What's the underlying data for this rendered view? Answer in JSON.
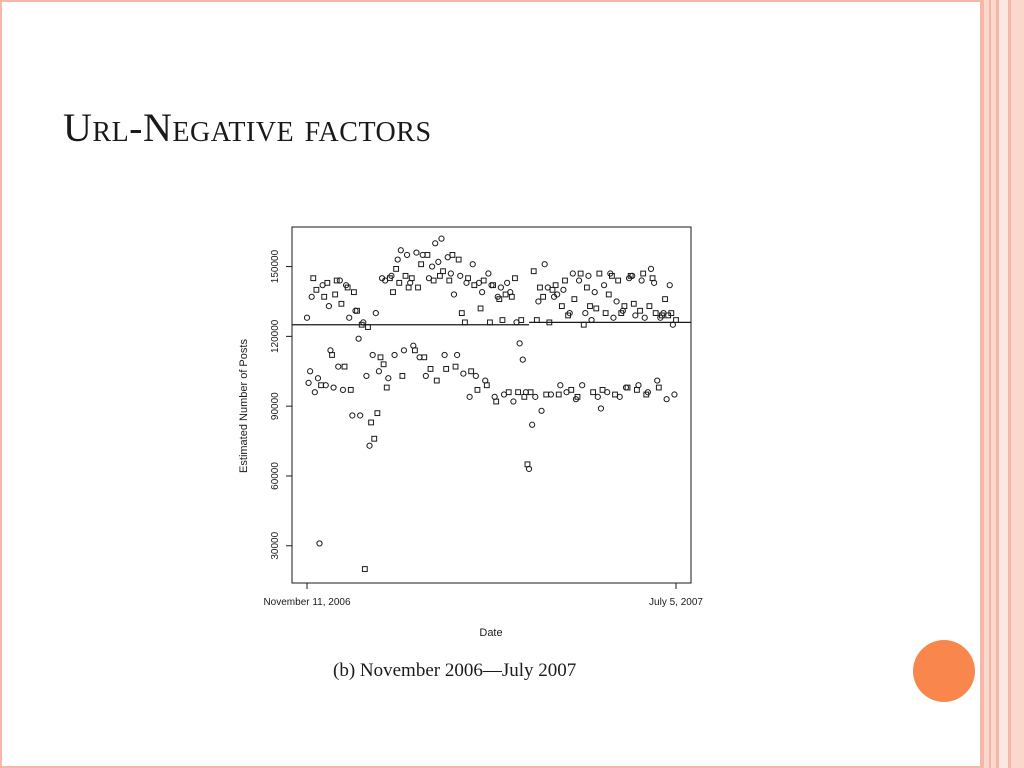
{
  "slide": {
    "title": "Url-Negative factors",
    "caption": "(b) November 2006—July 2007",
    "colors": {
      "accent": "#f9874d",
      "border_pink": "#f6b7a8",
      "border_light": "#fbd8cc",
      "ink": "#1a1a1a"
    }
  },
  "chart_data": {
    "type": "scatter",
    "xlabel": "Date",
    "ylabel": "Estimated Number of Posts",
    "x_tick_labels": [
      "November 11, 2006",
      "July 5, 2007"
    ],
    "x_range": [
      "2006-11-11",
      "2007-07-05"
    ],
    "yticks": [
      30000,
      60000,
      90000,
      120000,
      150000
    ],
    "ylim": [
      14000,
      167000
    ],
    "grid": false,
    "reference_line": {
      "label": "",
      "segments": [
        {
          "x": [
            "2006-11-11",
            "2007-04-02"
          ],
          "y": 125000
        },
        {
          "x": [
            "2007-04-02",
            "2007-07-05"
          ],
          "y": 126000
        }
      ]
    },
    "series": [
      {
        "marker": "circle",
        "points": [
          [
            "2006-11-11",
            128000
          ],
          [
            "2006-11-12",
            100000
          ],
          [
            "2006-11-13",
            105000
          ],
          [
            "2006-11-14",
            137000
          ],
          [
            "2006-11-16",
            96000
          ],
          [
            "2006-11-18",
            102000
          ],
          [
            "2006-11-19",
            31000
          ],
          [
            "2006-11-21",
            142000
          ],
          [
            "2006-11-23",
            99000
          ],
          [
            "2006-11-25",
            133000
          ],
          [
            "2006-11-26",
            114000
          ],
          [
            "2006-11-28",
            98000
          ],
          [
            "2006-12-01",
            107000
          ],
          [
            "2006-12-02",
            144000
          ],
          [
            "2006-12-04",
            97000
          ],
          [
            "2006-12-06",
            142000
          ],
          [
            "2006-12-08",
            128000
          ],
          [
            "2006-12-10",
            86000
          ],
          [
            "2006-12-12",
            131000
          ],
          [
            "2006-12-14",
            119000
          ],
          [
            "2006-12-15",
            86000
          ],
          [
            "2006-12-17",
            126000
          ],
          [
            "2006-12-19",
            103000
          ],
          [
            "2006-12-21",
            73000
          ],
          [
            "2006-12-23",
            112000
          ],
          [
            "2006-12-25",
            130000
          ],
          [
            "2006-12-27",
            105000
          ],
          [
            "2006-12-29",
            145000
          ],
          [
            "2006-12-31",
            144000
          ],
          [
            "2007-01-02",
            102000
          ],
          [
            "2007-01-04",
            146000
          ],
          [
            "2007-01-06",
            112000
          ],
          [
            "2007-01-08",
            153000
          ],
          [
            "2007-01-10",
            157000
          ],
          [
            "2007-01-12",
            114000
          ],
          [
            "2007-01-14",
            155000
          ],
          [
            "2007-01-16",
            143000
          ],
          [
            "2007-01-18",
            116000
          ],
          [
            "2007-01-20",
            156000
          ],
          [
            "2007-01-22",
            111000
          ],
          [
            "2007-01-24",
            155000
          ],
          [
            "2007-01-26",
            103000
          ],
          [
            "2007-01-28",
            145000
          ],
          [
            "2007-01-30",
            150000
          ],
          [
            "2007-02-01",
            160000
          ],
          [
            "2007-02-03",
            152000
          ],
          [
            "2007-02-05",
            162000
          ],
          [
            "2007-02-07",
            112000
          ],
          [
            "2007-02-09",
            154000
          ],
          [
            "2007-02-11",
            147000
          ],
          [
            "2007-02-13",
            138000
          ],
          [
            "2007-02-15",
            112000
          ],
          [
            "2007-02-17",
            146000
          ],
          [
            "2007-02-19",
            104000
          ],
          [
            "2007-02-21",
            143000
          ],
          [
            "2007-02-23",
            94000
          ],
          [
            "2007-02-25",
            151000
          ],
          [
            "2007-02-27",
            103000
          ],
          [
            "2007-03-01",
            143000
          ],
          [
            "2007-03-03",
            139000
          ],
          [
            "2007-03-05",
            101000
          ],
          [
            "2007-03-07",
            147000
          ],
          [
            "2007-03-09",
            142000
          ],
          [
            "2007-03-11",
            94000
          ],
          [
            "2007-03-13",
            137000
          ],
          [
            "2007-03-15",
            141000
          ],
          [
            "2007-03-17",
            95000
          ],
          [
            "2007-03-19",
            143000
          ],
          [
            "2007-03-21",
            139000
          ],
          [
            "2007-03-23",
            92000
          ],
          [
            "2007-03-25",
            126000
          ],
          [
            "2007-03-27",
            117000
          ],
          [
            "2007-03-29",
            110000
          ],
          [
            "2007-03-31",
            96000
          ],
          [
            "2007-04-02",
            63000
          ],
          [
            "2007-04-04",
            82000
          ],
          [
            "2007-04-06",
            94000
          ],
          [
            "2007-04-08",
            135000
          ],
          [
            "2007-04-10",
            88000
          ],
          [
            "2007-04-12",
            151000
          ],
          [
            "2007-04-14",
            141000
          ],
          [
            "2007-04-16",
            95000
          ],
          [
            "2007-04-18",
            137000
          ],
          [
            "2007-04-20",
            138000
          ],
          [
            "2007-04-22",
            99000
          ],
          [
            "2007-04-24",
            140000
          ],
          [
            "2007-04-26",
            96000
          ],
          [
            "2007-04-28",
            130000
          ],
          [
            "2007-04-30",
            147000
          ],
          [
            "2007-05-02",
            93000
          ],
          [
            "2007-05-04",
            144000
          ],
          [
            "2007-05-06",
            99000
          ],
          [
            "2007-05-08",
            130000
          ],
          [
            "2007-05-10",
            146000
          ],
          [
            "2007-05-12",
            127000
          ],
          [
            "2007-05-14",
            139000
          ],
          [
            "2007-05-16",
            94000
          ],
          [
            "2007-05-18",
            89000
          ],
          [
            "2007-05-20",
            142000
          ],
          [
            "2007-05-22",
            96000
          ],
          [
            "2007-05-24",
            147000
          ],
          [
            "2007-05-26",
            128000
          ],
          [
            "2007-05-28",
            135000
          ],
          [
            "2007-05-30",
            94000
          ],
          [
            "2007-06-01",
            131000
          ],
          [
            "2007-06-03",
            98000
          ],
          [
            "2007-06-05",
            145000
          ],
          [
            "2007-06-07",
            146000
          ],
          [
            "2007-06-09",
            129000
          ],
          [
            "2007-06-11",
            99000
          ],
          [
            "2007-06-13",
            144000
          ],
          [
            "2007-06-15",
            128000
          ],
          [
            "2007-06-17",
            96000
          ],
          [
            "2007-06-19",
            149000
          ],
          [
            "2007-06-21",
            143000
          ],
          [
            "2007-06-23",
            101000
          ],
          [
            "2007-06-25",
            128000
          ],
          [
            "2007-06-27",
            130000
          ],
          [
            "2007-06-29",
            93000
          ],
          [
            "2007-07-01",
            142000
          ],
          [
            "2007-07-03",
            125000
          ],
          [
            "2007-07-04",
            95000
          ]
        ]
      },
      {
        "marker": "square",
        "points": [
          [
            "2006-11-15",
            145000
          ],
          [
            "2006-11-17",
            140000
          ],
          [
            "2006-11-20",
            99000
          ],
          [
            "2006-11-22",
            137000
          ],
          [
            "2006-11-24",
            143000
          ],
          [
            "2006-11-27",
            112000
          ],
          [
            "2006-11-29",
            138000
          ],
          [
            "2006-11-30",
            144000
          ],
          [
            "2006-12-03",
            134000
          ],
          [
            "2006-12-05",
            107000
          ],
          [
            "2006-12-07",
            141000
          ],
          [
            "2006-12-09",
            97000
          ],
          [
            "2006-12-11",
            139000
          ],
          [
            "2006-12-13",
            131000
          ],
          [
            "2006-12-16",
            125000
          ],
          [
            "2006-12-18",
            20000
          ],
          [
            "2006-12-20",
            124000
          ],
          [
            "2006-12-22",
            83000
          ],
          [
            "2006-12-24",
            76000
          ],
          [
            "2006-12-26",
            87000
          ],
          [
            "2006-12-28",
            111000
          ],
          [
            "2006-12-30",
            108000
          ],
          [
            "2007-01-01",
            98000
          ],
          [
            "2007-01-03",
            145000
          ],
          [
            "2007-01-05",
            139000
          ],
          [
            "2007-01-07",
            149000
          ],
          [
            "2007-01-09",
            143000
          ],
          [
            "2007-01-11",
            103000
          ],
          [
            "2007-01-13",
            146000
          ],
          [
            "2007-01-15",
            141000
          ],
          [
            "2007-01-17",
            145000
          ],
          [
            "2007-01-19",
            114000
          ],
          [
            "2007-01-21",
            141000
          ],
          [
            "2007-01-23",
            151000
          ],
          [
            "2007-01-25",
            111000
          ],
          [
            "2007-01-27",
            155000
          ],
          [
            "2007-01-29",
            106000
          ],
          [
            "2007-01-31",
            144000
          ],
          [
            "2007-02-02",
            101000
          ],
          [
            "2007-02-04",
            146000
          ],
          [
            "2007-02-06",
            148000
          ],
          [
            "2007-02-08",
            106000
          ],
          [
            "2007-02-10",
            144000
          ],
          [
            "2007-02-12",
            155000
          ],
          [
            "2007-02-14",
            107000
          ],
          [
            "2007-02-16",
            153000
          ],
          [
            "2007-02-18",
            130000
          ],
          [
            "2007-02-20",
            126000
          ],
          [
            "2007-02-22",
            145000
          ],
          [
            "2007-02-24",
            105000
          ],
          [
            "2007-02-26",
            142000
          ],
          [
            "2007-02-28",
            97000
          ],
          [
            "2007-03-02",
            132000
          ],
          [
            "2007-03-04",
            144000
          ],
          [
            "2007-03-06",
            99000
          ],
          [
            "2007-03-08",
            126000
          ],
          [
            "2007-03-10",
            142000
          ],
          [
            "2007-03-12",
            92000
          ],
          [
            "2007-03-14",
            136000
          ],
          [
            "2007-03-16",
            127000
          ],
          [
            "2007-03-18",
            138000
          ],
          [
            "2007-03-20",
            96000
          ],
          [
            "2007-03-22",
            137000
          ],
          [
            "2007-03-24",
            145000
          ],
          [
            "2007-03-26",
            96000
          ],
          [
            "2007-03-28",
            127000
          ],
          [
            "2007-03-30",
            94000
          ],
          [
            "2007-04-01",
            65000
          ],
          [
            "2007-04-03",
            96000
          ],
          [
            "2007-04-05",
            148000
          ],
          [
            "2007-04-07",
            127000
          ],
          [
            "2007-04-09",
            141000
          ],
          [
            "2007-04-11",
            137000
          ],
          [
            "2007-04-13",
            95000
          ],
          [
            "2007-04-15",
            126000
          ],
          [
            "2007-04-17",
            140000
          ],
          [
            "2007-04-19",
            142000
          ],
          [
            "2007-04-21",
            95000
          ],
          [
            "2007-04-23",
            133000
          ],
          [
            "2007-04-25",
            144000
          ],
          [
            "2007-04-27",
            129000
          ],
          [
            "2007-04-29",
            97000
          ],
          [
            "2007-05-01",
            136000
          ],
          [
            "2007-05-03",
            94000
          ],
          [
            "2007-05-05",
            147000
          ],
          [
            "2007-05-07",
            125000
          ],
          [
            "2007-05-09",
            141000
          ],
          [
            "2007-05-11",
            133000
          ],
          [
            "2007-05-13",
            96000
          ],
          [
            "2007-05-15",
            132000
          ],
          [
            "2007-05-17",
            147000
          ],
          [
            "2007-05-19",
            97000
          ],
          [
            "2007-05-21",
            130000
          ],
          [
            "2007-05-23",
            138000
          ],
          [
            "2007-05-25",
            146000
          ],
          [
            "2007-05-27",
            95000
          ],
          [
            "2007-05-29",
            144000
          ],
          [
            "2007-05-31",
            130000
          ],
          [
            "2007-06-02",
            133000
          ],
          [
            "2007-06-04",
            98000
          ],
          [
            "2007-06-06",
            146000
          ],
          [
            "2007-06-08",
            134000
          ],
          [
            "2007-06-10",
            97000
          ],
          [
            "2007-06-12",
            131000
          ],
          [
            "2007-06-14",
            147000
          ],
          [
            "2007-06-16",
            95000
          ],
          [
            "2007-06-18",
            133000
          ],
          [
            "2007-06-20",
            145000
          ],
          [
            "2007-06-22",
            130000
          ],
          [
            "2007-06-24",
            98000
          ],
          [
            "2007-06-26",
            129000
          ],
          [
            "2007-06-28",
            136000
          ],
          [
            "2007-06-30",
            129000
          ],
          [
            "2007-07-02",
            130000
          ],
          [
            "2007-07-05",
            127000
          ]
        ]
      }
    ]
  }
}
